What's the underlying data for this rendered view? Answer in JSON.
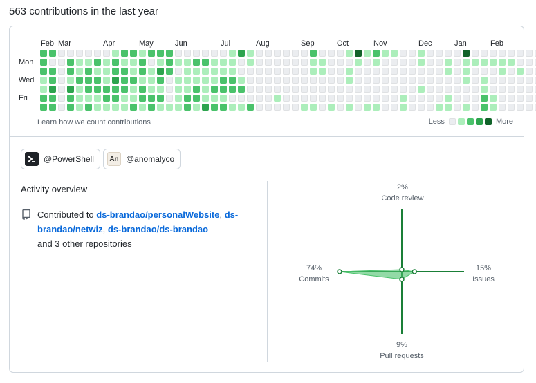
{
  "header": {
    "title": "563 contributions in the last year"
  },
  "graph": {
    "months": [
      "Feb",
      "Mar",
      "Apr",
      "May",
      "Jun",
      "Jul",
      "Aug",
      "Sep",
      "Oct",
      "Nov",
      "Dec",
      "Jan",
      "Feb"
    ],
    "day_labels": [
      "Mon",
      "Wed",
      "Fri"
    ],
    "learn_link": "Learn how we count contributions",
    "legend_less": "Less",
    "legend_more": "More",
    "colors": [
      "#ebedf0",
      "#aceebb",
      "#4ac26b",
      "#2da44e",
      "#116329"
    ],
    "weeks": [
      [
        2,
        2,
        2,
        1,
        1,
        2,
        2
      ],
      [
        2,
        0,
        2,
        2,
        3,
        2,
        2
      ],
      [
        0,
        0,
        0,
        0,
        0,
        0,
        0
      ],
      [
        0,
        2,
        2,
        1,
        3,
        2,
        2
      ],
      [
        0,
        1,
        1,
        2,
        1,
        1,
        1
      ],
      [
        0,
        1,
        2,
        2,
        2,
        1,
        2
      ],
      [
        0,
        2,
        1,
        2,
        2,
        1,
        1
      ],
      [
        0,
        1,
        1,
        1,
        2,
        2,
        1
      ],
      [
        1,
        2,
        2,
        3,
        2,
        2,
        1
      ],
      [
        2,
        1,
        2,
        2,
        2,
        1,
        1
      ],
      [
        2,
        1,
        1,
        2,
        1,
        1,
        2
      ],
      [
        1,
        2,
        2,
        1,
        2,
        2,
        1
      ],
      [
        2,
        0,
        1,
        1,
        1,
        2,
        2
      ],
      [
        2,
        1,
        3,
        2,
        1,
        2,
        1
      ],
      [
        2,
        2,
        2,
        0,
        0,
        0,
        1
      ],
      [
        0,
        1,
        0,
        1,
        1,
        1,
        1
      ],
      [
        0,
        1,
        1,
        1,
        1,
        2,
        2
      ],
      [
        0,
        2,
        1,
        1,
        2,
        2,
        1
      ],
      [
        0,
        2,
        1,
        1,
        1,
        1,
        3
      ],
      [
        0,
        1,
        1,
        1,
        2,
        1,
        2
      ],
      [
        0,
        1,
        1,
        2,
        2,
        1,
        2
      ],
      [
        1,
        1,
        1,
        2,
        2,
        0,
        1
      ],
      [
        3,
        0,
        0,
        1,
        2,
        0,
        1
      ],
      [
        1,
        1,
        0,
        0,
        0,
        0,
        2
      ],
      [
        0,
        0,
        0,
        0,
        0,
        0,
        0
      ],
      [
        0,
        0,
        0,
        0,
        0,
        0,
        0
      ],
      [
        0,
        0,
        0,
        0,
        0,
        1,
        0
      ],
      [
        0,
        0,
        0,
        0,
        0,
        0,
        0
      ],
      [
        0,
        0,
        0,
        0,
        0,
        0,
        0
      ],
      [
        0,
        0,
        0,
        0,
        0,
        0,
        1
      ],
      [
        2,
        1,
        1,
        0,
        0,
        0,
        1
      ],
      [
        0,
        1,
        1,
        0,
        0,
        0,
        0
      ],
      [
        0,
        0,
        0,
        0,
        0,
        0,
        1
      ],
      [
        0,
        0,
        0,
        0,
        0,
        0,
        0
      ],
      [
        1,
        0,
        1,
        1,
        0,
        0,
        1
      ],
      [
        4,
        1,
        0,
        0,
        0,
        0,
        0
      ],
      [
        1,
        0,
        0,
        0,
        0,
        0,
        1
      ],
      [
        2,
        1,
        0,
        0,
        0,
        0,
        1
      ],
      [
        1,
        0,
        0,
        0,
        0,
        0,
        0
      ],
      [
        1,
        0,
        0,
        0,
        0,
        0,
        0
      ],
      [
        0,
        0,
        0,
        0,
        0,
        1,
        1
      ],
      [
        0,
        0,
        0,
        0,
        0,
        0,
        0
      ],
      [
        1,
        1,
        0,
        0,
        1,
        0,
        0
      ],
      [
        0,
        0,
        0,
        0,
        0,
        0,
        0
      ],
      [
        0,
        0,
        0,
        0,
        0,
        0,
        1
      ],
      [
        0,
        1,
        1,
        0,
        0,
        1,
        1
      ],
      [
        0,
        0,
        0,
        0,
        0,
        0,
        0
      ],
      [
        4,
        1,
        1,
        1,
        0,
        0,
        1
      ],
      [
        0,
        1,
        0,
        0,
        0,
        0,
        0
      ],
      [
        0,
        1,
        0,
        1,
        1,
        2,
        2
      ],
      [
        0,
        1,
        0,
        0,
        0,
        1,
        1
      ],
      [
        0,
        1,
        1,
        0,
        0,
        0,
        0
      ],
      [
        0,
        1,
        0,
        0,
        0,
        0,
        0
      ],
      [
        0,
        0,
        1,
        0,
        0,
        0,
        0
      ],
      [
        0,
        0,
        0,
        0,
        0,
        0,
        0
      ],
      [
        0,
        0,
        0,
        0,
        0,
        0,
        0
      ],
      [
        0,
        0,
        1,
        0,
        0,
        0,
        0
      ]
    ]
  },
  "orgs": [
    {
      "handle": "@PowerShell",
      "logo_icon": "powershell-prompt-icon"
    },
    {
      "handle": "@anomalyco",
      "logo_text": "An"
    }
  ],
  "activity": {
    "title": "Activity overview",
    "prefix": "Contributed to ",
    "repos": [
      "ds-brandao/personalWebsite",
      "ds-brandao/netwiz",
      "ds-brandao/ds-brandao"
    ],
    "sep1": ",",
    "sep2": ",",
    "suffix": "and 3 other repositories",
    "icon": "repo-icon"
  },
  "radar": {
    "accent": "#1a7f37",
    "fill": "#4ac26b",
    "code_review": {
      "pct": "2%",
      "label": "Code review",
      "value": 2
    },
    "issues": {
      "pct": "15%",
      "label": "Issues",
      "value": 15
    },
    "pull_requests": {
      "pct": "9%",
      "label": "Pull requests",
      "value": 9
    },
    "commits": {
      "pct": "74%",
      "label": "Commits",
      "value": 74
    }
  }
}
